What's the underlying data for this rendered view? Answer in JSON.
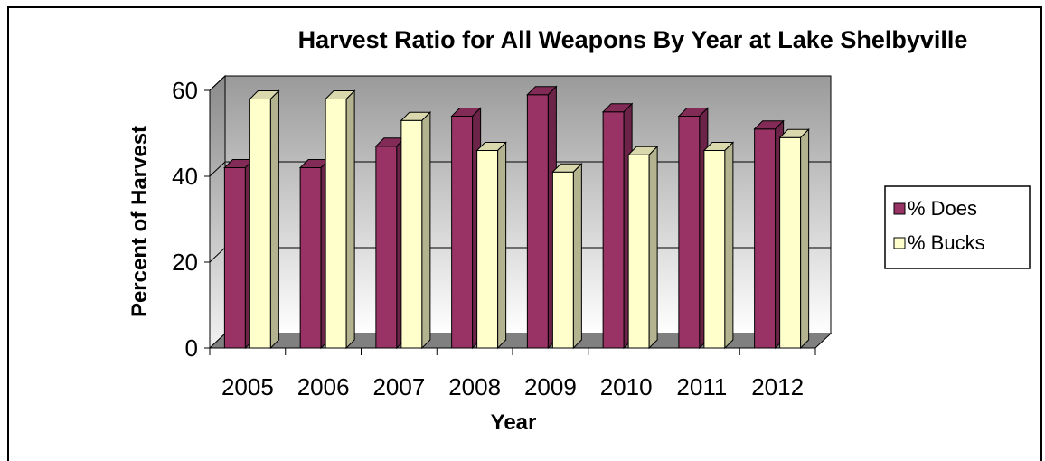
{
  "chart_data": {
    "type": "bar",
    "title": "Harvest Ratio for All Weapons By Year at Lake Shelbyville",
    "xlabel": "Year",
    "ylabel": "Percent of Harvest",
    "categories": [
      "2005",
      "2006",
      "2007",
      "2008",
      "2009",
      "2010",
      "2011",
      "2012"
    ],
    "ylim": [
      0,
      60
    ],
    "yticks": [
      0,
      20,
      40,
      60
    ],
    "grid": true,
    "three_d": true,
    "legend_position": "right",
    "series": [
      {
        "name": "% Does",
        "color": "#993366",
        "values": [
          42,
          42,
          47,
          54,
          59,
          55,
          54,
          51
        ]
      },
      {
        "name": "% Bucks",
        "color": "#ffffcc",
        "values": [
          58,
          58,
          53,
          46,
          41,
          45,
          46,
          49
        ]
      }
    ]
  }
}
